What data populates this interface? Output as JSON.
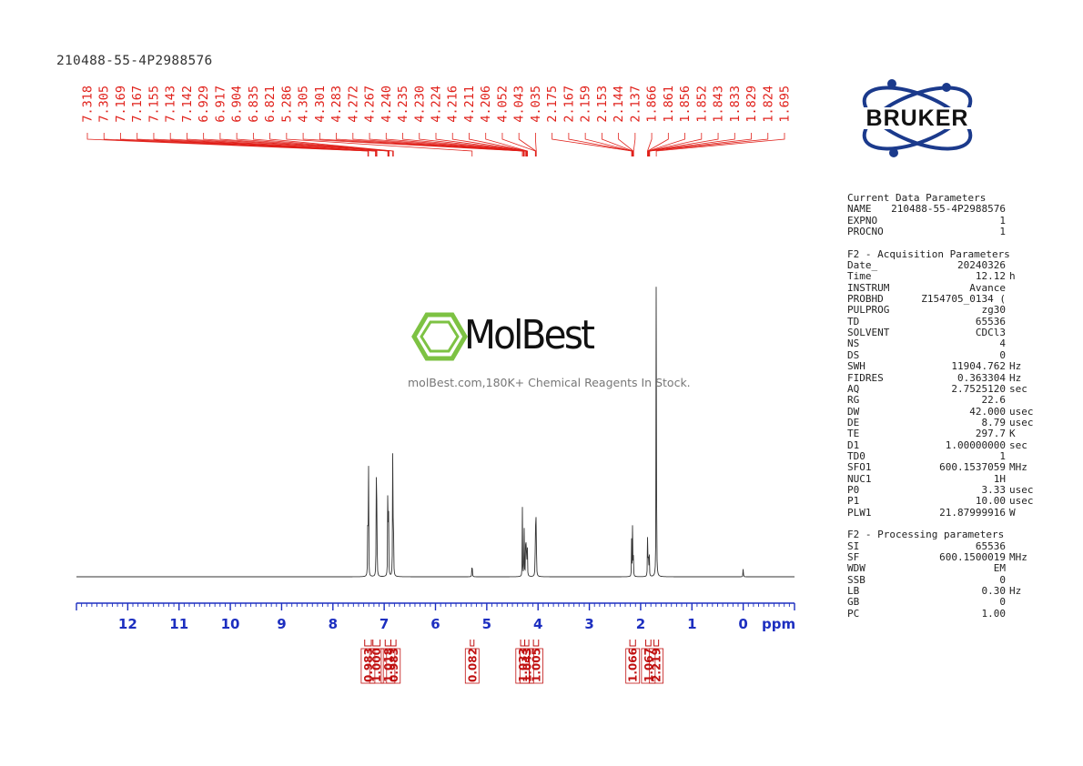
{
  "sample_id": "210488-55-4P2988576",
  "brand": {
    "logo_text": "BRUKER",
    "logo_color": "#1b3a8c",
    "watermark_name": "MolBest",
    "watermark_tagline": "molBest.com,180K+ Chemical Reagents In Stock.",
    "watermark_color": "#7dc243"
  },
  "chart_data": {
    "type": "line",
    "title": "",
    "xlabel": "ppm",
    "xlim": [
      13.0,
      -1.0
    ],
    "x_reversed": true,
    "x_ticks": [
      12,
      11,
      10,
      9,
      8,
      7,
      6,
      5,
      4,
      3,
      2,
      1,
      0
    ],
    "peak_labels": [
      "7.318",
      "7.305",
      "7.169",
      "7.167",
      "7.155",
      "7.143",
      "7.142",
      "6.929",
      "6.917",
      "6.904",
      "6.835",
      "6.821",
      "5.286",
      "4.305",
      "4.301",
      "4.283",
      "4.272",
      "4.267",
      "4.240",
      "4.235",
      "4.230",
      "4.224",
      "4.216",
      "4.211",
      "4.206",
      "4.052",
      "4.043",
      "4.035",
      "2.175",
      "2.167",
      "2.159",
      "2.153",
      "2.144",
      "2.137",
      "1.866",
      "1.861",
      "1.856",
      "1.852",
      "1.843",
      "1.833",
      "1.829",
      "1.824",
      "1.695"
    ],
    "peaks": [
      {
        "x": 7.318,
        "y": 0.29
      },
      {
        "x": 7.305,
        "y": 0.27
      },
      {
        "x": 7.155,
        "y": 0.28
      },
      {
        "x": 7.142,
        "y": 0.26
      },
      {
        "x": 6.929,
        "y": 0.3
      },
      {
        "x": 6.917,
        "y": 0.29
      },
      {
        "x": 6.835,
        "y": 0.31
      },
      {
        "x": 6.821,
        "y": 0.3
      },
      {
        "x": 5.286,
        "y": 0.06
      },
      {
        "x": 4.305,
        "y": 0.17
      },
      {
        "x": 4.272,
        "y": 0.16
      },
      {
        "x": 4.24,
        "y": 0.14
      },
      {
        "x": 4.23,
        "y": 0.13
      },
      {
        "x": 4.211,
        "y": 0.13
      },
      {
        "x": 4.052,
        "y": 0.15
      },
      {
        "x": 4.043,
        "y": 0.2
      },
      {
        "x": 4.035,
        "y": 0.14
      },
      {
        "x": 2.175,
        "y": 0.1
      },
      {
        "x": 2.159,
        "y": 0.12
      },
      {
        "x": 2.144,
        "y": 0.1
      },
      {
        "x": 1.866,
        "y": 0.09
      },
      {
        "x": 1.852,
        "y": 0.11
      },
      {
        "x": 1.833,
        "y": 0.09
      },
      {
        "x": 1.695,
        "y": 1.0
      },
      {
        "x": 0.0,
        "y": 0.03
      }
    ],
    "integrals": [
      {
        "value": "0.983",
        "from": 7.38,
        "to": 7.25
      },
      {
        "value": "1.000",
        "from": 7.22,
        "to": 7.08
      },
      {
        "value": "1.018",
        "from": 6.98,
        "to": 6.87
      },
      {
        "value": "0.983",
        "from": 6.87,
        "to": 6.77
      },
      {
        "value": "0.082",
        "from": 5.32,
        "to": 5.25
      },
      {
        "value": "1.033",
        "from": 4.34,
        "to": 4.26
      },
      {
        "value": "1.043",
        "from": 4.26,
        "to": 4.18
      },
      {
        "value": "1.005",
        "from": 4.09,
        "to": 3.99
      },
      {
        "value": "1.066",
        "from": 2.21,
        "to": 2.1
      },
      {
        "value": "1.067",
        "from": 1.9,
        "to": 1.8
      },
      {
        "value": "2.219",
        "from": 1.74,
        "to": 1.65
      }
    ]
  },
  "params": {
    "sections": [
      {
        "title": "Current Data Parameters",
        "rows": [
          {
            "k": "NAME",
            "v": "210488-55-4P2988576",
            "u": ""
          },
          {
            "k": "EXPNO",
            "v": "1",
            "u": ""
          },
          {
            "k": "PROCNO",
            "v": "1",
            "u": ""
          }
        ]
      },
      {
        "title": "F2 - Acquisition Parameters",
        "rows": [
          {
            "k": "Date_",
            "v": "20240326",
            "u": ""
          },
          {
            "k": "Time",
            "v": "12.12",
            "u": "h"
          },
          {
            "k": "INSTRUM",
            "v": "Avance",
            "u": ""
          },
          {
            "k": "PROBHD",
            "v": "Z154705_0134 (",
            "u": ""
          },
          {
            "k": "PULPROG",
            "v": "zg30",
            "u": ""
          },
          {
            "k": "TD",
            "v": "65536",
            "u": ""
          },
          {
            "k": "SOLVENT",
            "v": "CDCl3",
            "u": ""
          },
          {
            "k": "NS",
            "v": "4",
            "u": ""
          },
          {
            "k": "DS",
            "v": "0",
            "u": ""
          },
          {
            "k": "SWH",
            "v": "11904.762",
            "u": "Hz"
          },
          {
            "k": "FIDRES",
            "v": "0.363304",
            "u": "Hz"
          },
          {
            "k": "AQ",
            "v": "2.7525120",
            "u": "sec"
          },
          {
            "k": "RG",
            "v": "22.6",
            "u": ""
          },
          {
            "k": "DW",
            "v": "42.000",
            "u": "usec"
          },
          {
            "k": "DE",
            "v": "8.79",
            "u": "usec"
          },
          {
            "k": "TE",
            "v": "297.7",
            "u": "K"
          },
          {
            "k": "D1",
            "v": "1.00000000",
            "u": "sec"
          },
          {
            "k": "TD0",
            "v": "1",
            "u": ""
          },
          {
            "k": "SFO1",
            "v": "600.1537059",
            "u": "MHz"
          },
          {
            "k": "NUC1",
            "v": "1H",
            "u": ""
          },
          {
            "k": "P0",
            "v": "3.33",
            "u": "usec"
          },
          {
            "k": "P1",
            "v": "10.00",
            "u": "usec"
          },
          {
            "k": "PLW1",
            "v": "21.87999916",
            "u": "W"
          }
        ]
      },
      {
        "title": "F2 - Processing parameters",
        "rows": [
          {
            "k": "SI",
            "v": "65536",
            "u": ""
          },
          {
            "k": "SF",
            "v": "600.1500019",
            "u": "MHz"
          },
          {
            "k": "WDW",
            "v": "EM",
            "u": ""
          },
          {
            "k": "SSB",
            "v": "0",
            "u": ""
          },
          {
            "k": "LB",
            "v": "0.30",
            "u": "Hz"
          },
          {
            "k": "GB",
            "v": "0",
            "u": ""
          },
          {
            "k": "PC",
            "v": "1.00",
            "u": ""
          }
        ]
      }
    ]
  }
}
